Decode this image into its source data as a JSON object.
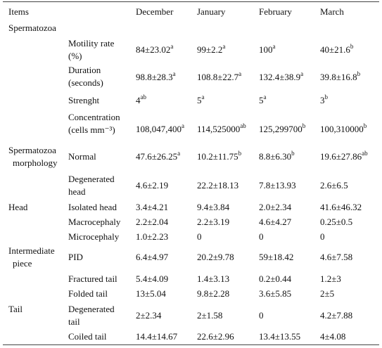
{
  "header": {
    "items": "Items",
    "months": [
      "December",
      "January",
      "February",
      "March"
    ]
  },
  "groups": [
    {
      "lines": [
        "Spermatozoa"
      ]
    },
    {
      "lines": [
        "Spermatozoa",
        "morphology"
      ]
    },
    {
      "lines": [
        "Head"
      ]
    },
    {
      "lines": [
        "Intermediate",
        "piece"
      ]
    },
    {
      "lines": [
        "Tail"
      ]
    }
  ],
  "rows": [
    {
      "label": [
        "Motility rate",
        "(%)"
      ],
      "cells": [
        {
          "text": "84±23.02",
          "sup": "a"
        },
        {
          "text": "99±2.2",
          "sup": "a"
        },
        {
          "text": "100",
          "sup": "a"
        },
        {
          "text": "40±21.6",
          "sup": "b"
        }
      ]
    },
    {
      "label": [
        "Duration",
        "(seconds)"
      ],
      "cells": [
        {
          "text": "98.8±28.3",
          "sup": "a"
        },
        {
          "text": "108.8±22.7",
          "sup": "a"
        },
        {
          "text": "132.4±38.9",
          "sup": "a"
        },
        {
          "text": "39.8±16.8",
          "sup": "b"
        }
      ]
    },
    {
      "label": [
        "Strenght"
      ],
      "cells": [
        {
          "text": "4",
          "sup": "ab"
        },
        {
          "text": "5",
          "sup": "a"
        },
        {
          "text": "5",
          "sup": "a"
        },
        {
          "text": "3",
          "sup": "b"
        }
      ]
    },
    {
      "label": [
        "Concentration",
        "(cells mm⁻³)"
      ],
      "cells": [
        {
          "text": "108,047,400",
          "sup": "a"
        },
        {
          "text": "114,525000",
          "sup": "ab"
        },
        {
          "text": "125,299700",
          "sup": "b"
        },
        {
          "text": "100,310000",
          "sup": "b"
        }
      ]
    },
    {
      "label": [
        "Normal"
      ],
      "cells": [
        {
          "text": "47.6±26.25",
          "sup": "a"
        },
        {
          "text": "10.2±11.75",
          "sup": "b"
        },
        {
          "text": "8.8±6.30",
          "sup": "b"
        },
        {
          "text": "19.6±27.86",
          "sup": "ab"
        }
      ]
    },
    {
      "label": [
        "Degenerated",
        "head"
      ],
      "cells": [
        {
          "text": "4.6±2.19"
        },
        {
          "text": "22.2±18.13"
        },
        {
          "text": "7.8±13.93"
        },
        {
          "text": "2.6±6.5"
        }
      ]
    },
    {
      "label": [
        "Isolated head"
      ],
      "cells": [
        {
          "text": "3.4±4.21"
        },
        {
          "text": "9.4±3.84"
        },
        {
          "text": "2.0±2.34"
        },
        {
          "text": "41.6±46.32"
        }
      ]
    },
    {
      "label": [
        "Macrocephaly"
      ],
      "cells": [
        {
          "text": "2.2±2.04"
        },
        {
          "text": "2.2±3.19"
        },
        {
          "text": "4.6±4.27"
        },
        {
          "text": "0.25±0.5"
        }
      ]
    },
    {
      "label": [
        "Microcephaly"
      ],
      "cells": [
        {
          "text": "1.0±2.23"
        },
        {
          "text": "0"
        },
        {
          "text": "0"
        },
        {
          "text": "0"
        }
      ]
    },
    {
      "label": [
        "PID"
      ],
      "cells": [
        {
          "text": "6.4±4.97"
        },
        {
          "text": "20.2±9.78"
        },
        {
          "text": "59±18.42"
        },
        {
          "text": "4.6±7.58"
        }
      ]
    },
    {
      "label": [
        "Fractured tail"
      ],
      "cells": [
        {
          "text": "5.4±4.09"
        },
        {
          "text": "1.4±3.13"
        },
        {
          "text": "0.2±0.44"
        },
        {
          "text": "1.2±3"
        }
      ]
    },
    {
      "label": [
        "Folded tail"
      ],
      "cells": [
        {
          "text": "13±5.04"
        },
        {
          "text": "9.8±2.28"
        },
        {
          "text": "3.6±5.85"
        },
        {
          "text": "2±5"
        }
      ]
    },
    {
      "label": [
        "Degenerated",
        "tail"
      ],
      "cells": [
        {
          "text": "2±2.34"
        },
        {
          "text": "2±1.58"
        },
        {
          "text": "0"
        },
        {
          "text": "4.2±7.88"
        }
      ]
    },
    {
      "label": [
        "Coiled tail"
      ],
      "cells": [
        {
          "text": "14.4±14.67"
        },
        {
          "text": "22.6±2.96"
        },
        {
          "text": "13.4±13.55"
        },
        {
          "text": "4±4.08"
        }
      ]
    }
  ]
}
